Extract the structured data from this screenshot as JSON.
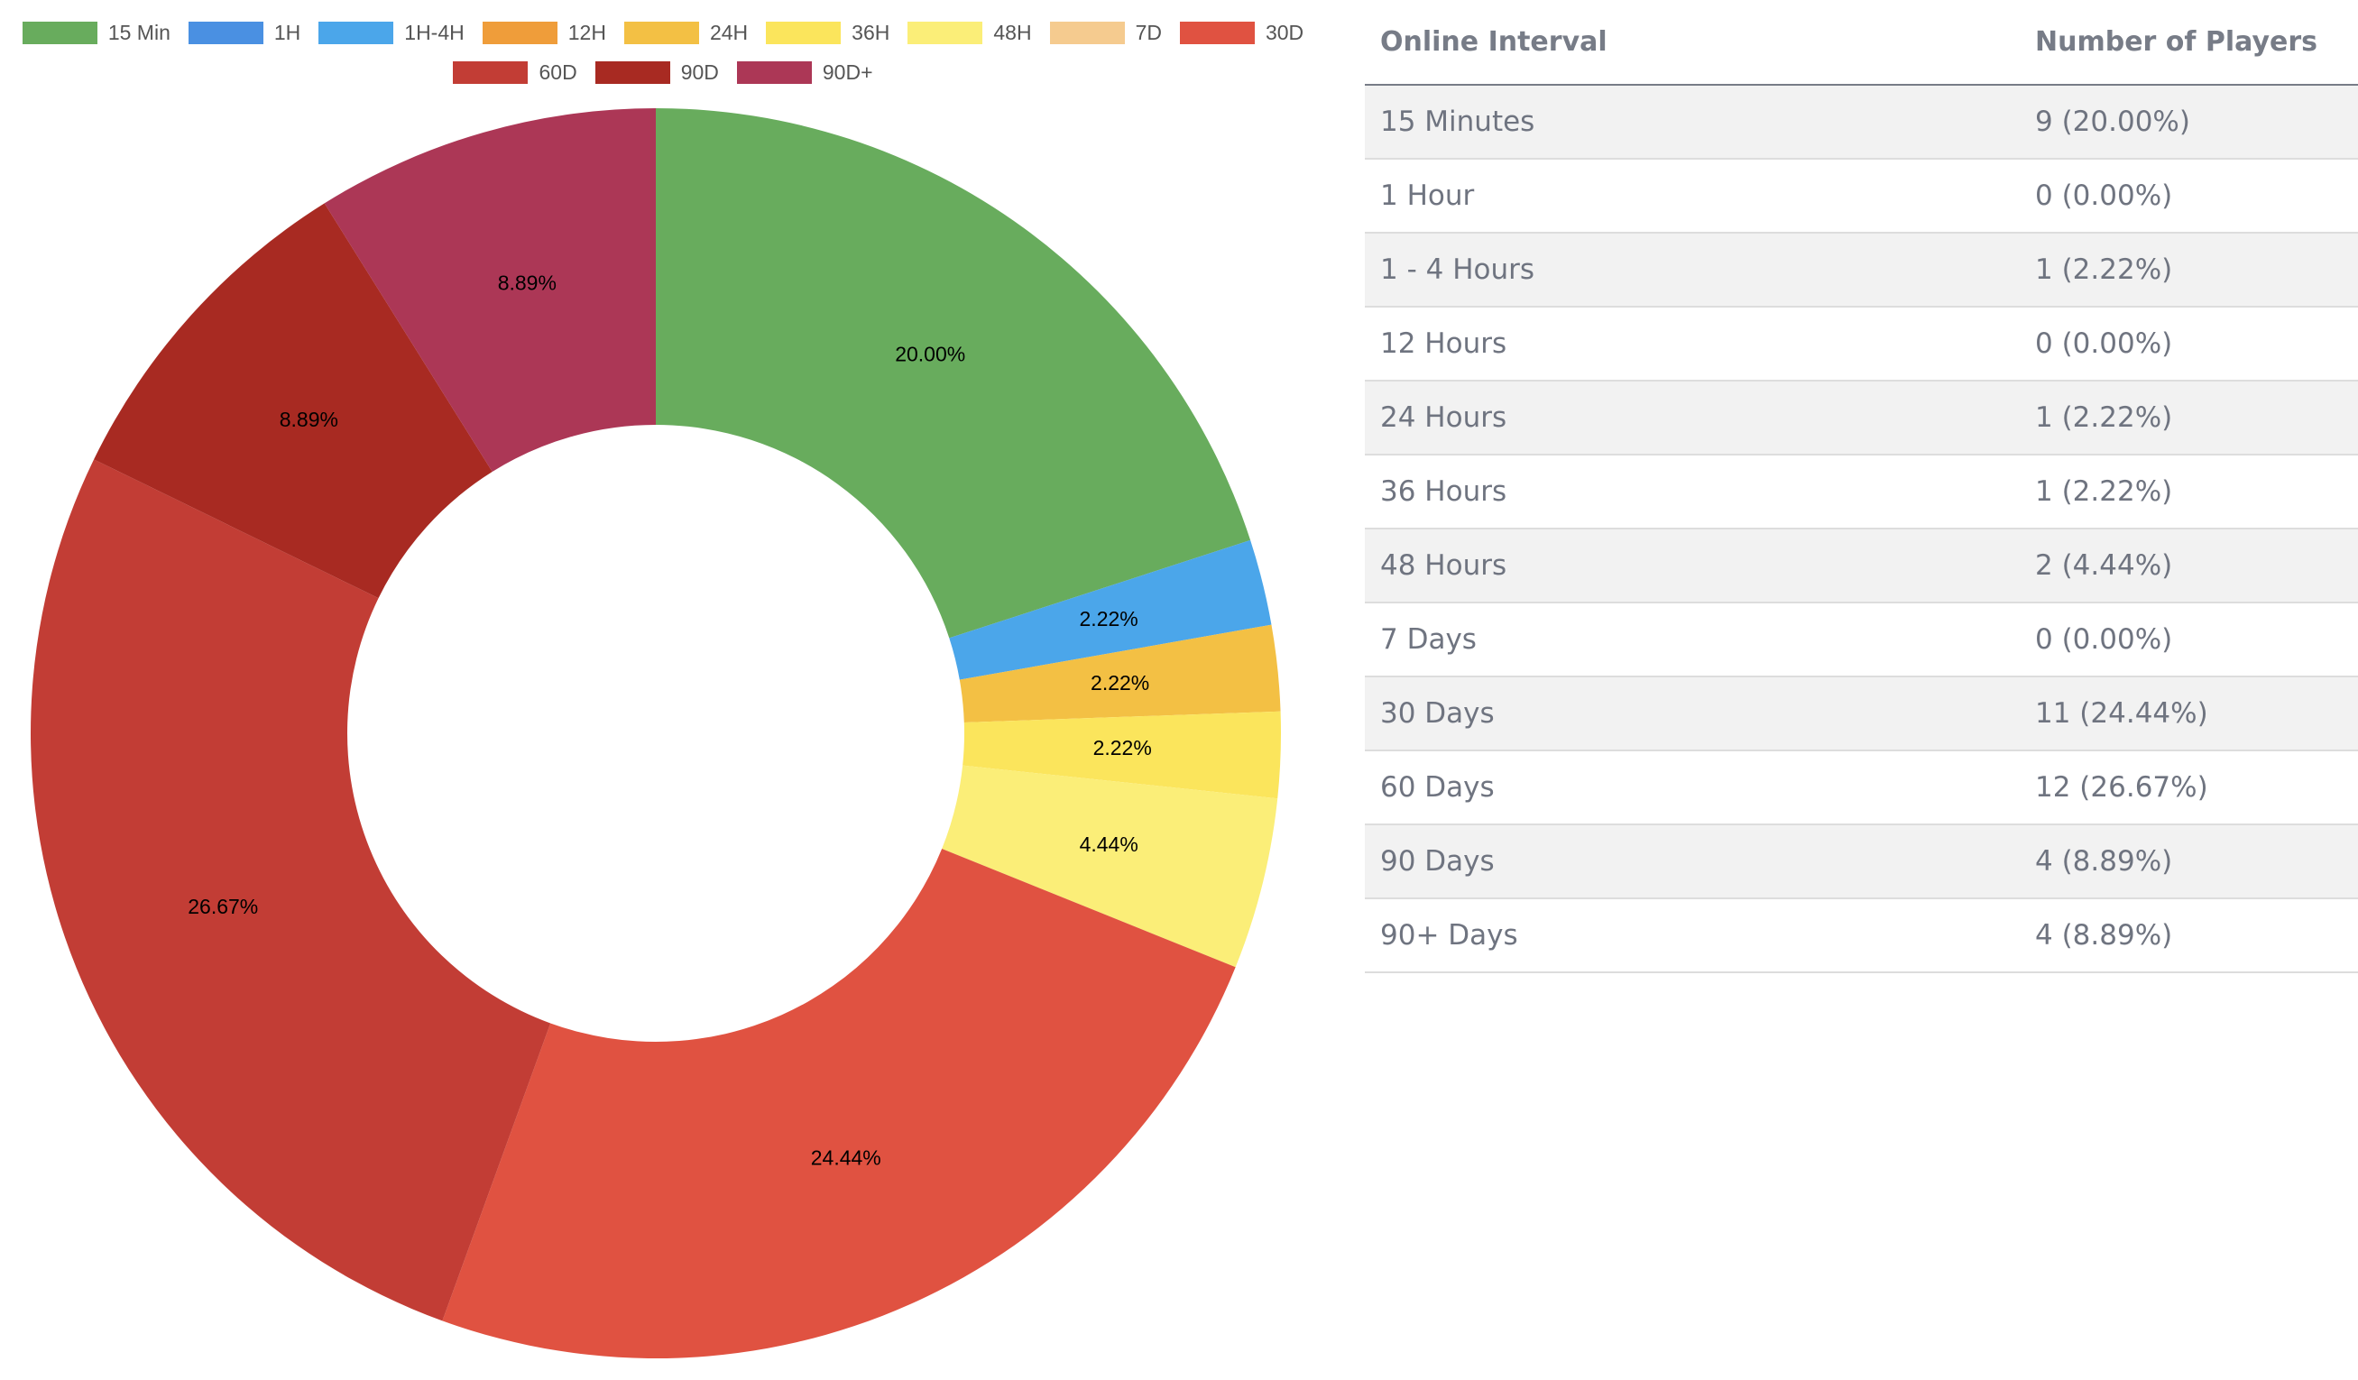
{
  "chart_data": {
    "type": "pie",
    "donut": true,
    "categories": [
      "15 Min",
      "1H",
      "1H-4H",
      "12H",
      "24H",
      "36H",
      "48H",
      "7D",
      "30D",
      "60D",
      "90D",
      "90D+"
    ],
    "values": [
      20.0,
      0.0,
      2.22,
      0.0,
      2.22,
      2.22,
      4.44,
      0.0,
      24.44,
      26.67,
      8.89,
      8.89
    ],
    "labels": [
      "20.00%",
      "",
      "2.22%",
      "",
      "2.22%",
      "2.22%",
      "4.44%",
      "",
      "24.44%",
      "26.67%",
      "8.89%",
      "8.89%"
    ],
    "colors": [
      "#68ac5d",
      "#4a90e2",
      "#4ba6ea",
      "#ef9d3a",
      "#f3c044",
      "#fbe55c",
      "#fbee78",
      "#f5cb8f",
      "#e05241",
      "#c23d35",
      "#a82a22",
      "#ac3756"
    ],
    "legend_position": "top"
  },
  "table": {
    "headers": [
      "Online Interval",
      "Number of Players"
    ],
    "rows": [
      [
        "15 Minutes",
        "9 (20.00%)"
      ],
      [
        "1 Hour",
        "0 (0.00%)"
      ],
      [
        "1 - 4 Hours",
        "1 (2.22%)"
      ],
      [
        "12 Hours",
        "0 (0.00%)"
      ],
      [
        "24 Hours",
        "1 (2.22%)"
      ],
      [
        "36 Hours",
        "1 (2.22%)"
      ],
      [
        "48 Hours",
        "2 (4.44%)"
      ],
      [
        "7 Days",
        "0 (0.00%)"
      ],
      [
        "30 Days",
        "11 (24.44%)"
      ],
      [
        "60 Days",
        "12 (26.67%)"
      ],
      [
        "90 Days",
        "4 (8.89%)"
      ],
      [
        "90+ Days",
        "4 (8.89%)"
      ]
    ]
  }
}
